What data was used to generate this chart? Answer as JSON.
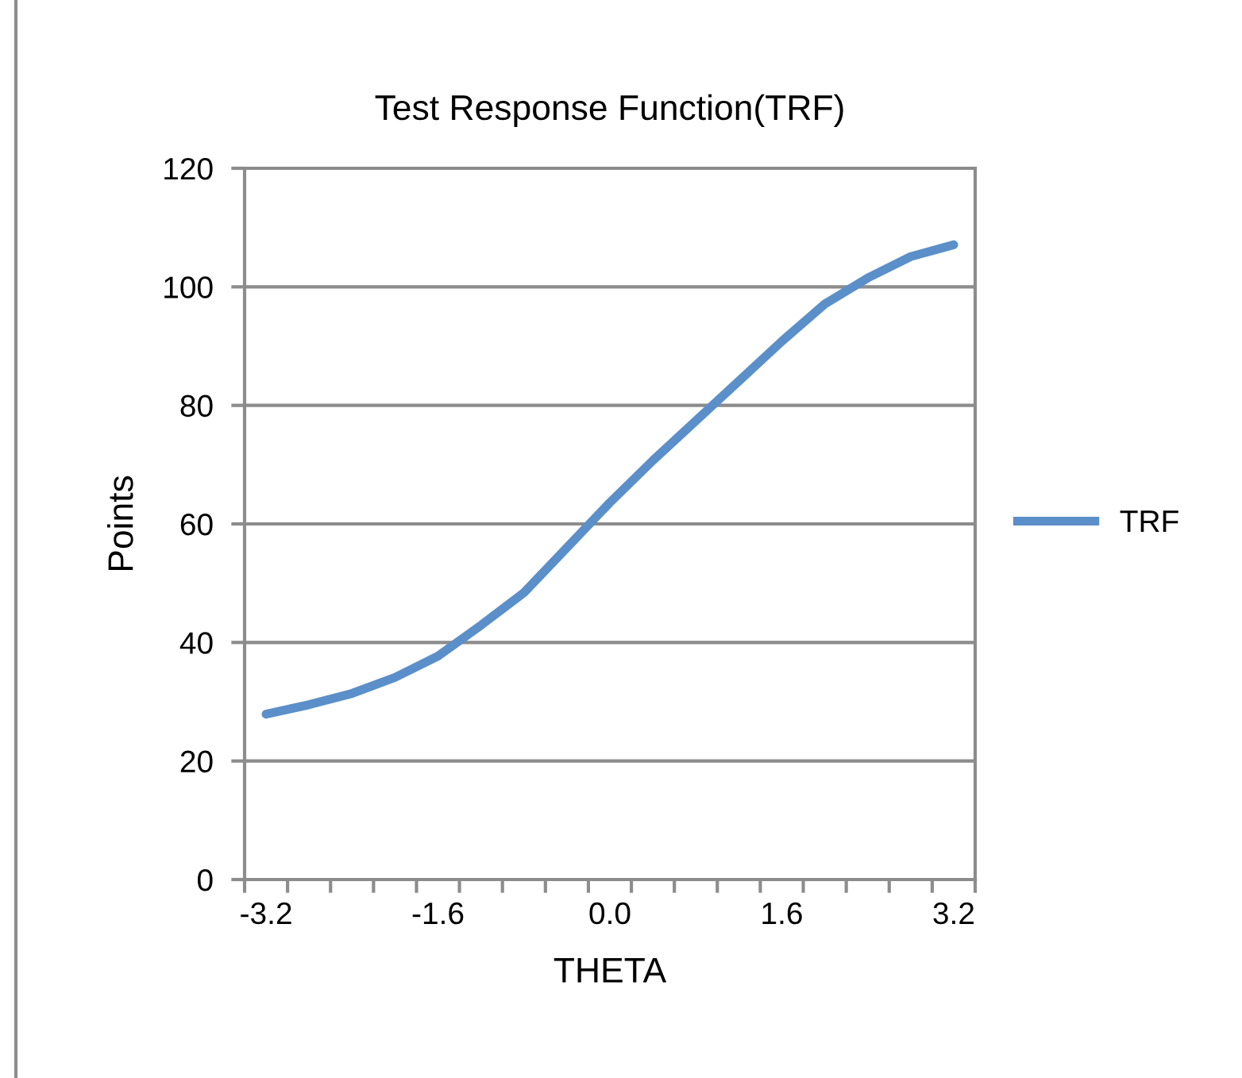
{
  "chart_data": {
    "type": "line",
    "title": "Test Response Function(TRF)",
    "xlabel": "THETA",
    "ylabel": "Points",
    "categories": [
      "-3.2",
      null,
      null,
      null,
      "-1.6",
      null,
      null,
      null,
      "0.0",
      null,
      null,
      null,
      "1.6",
      null,
      null,
      null,
      "3.2"
    ],
    "series": [
      {
        "name": "TRF",
        "color": "#5b8fc9",
        "values": [
          27.9,
          29.5,
          31.4,
          34.1,
          37.7,
          42.9,
          48.4,
          56.0,
          63.6,
          70.7,
          77.4,
          84.1,
          90.8,
          97.1,
          101.5,
          105.1,
          107.1
        ]
      }
    ],
    "ylim": [
      0,
      120
    ],
    "yticks": [
      0,
      20,
      40,
      60,
      80,
      100,
      120
    ],
    "grid": "y",
    "legend": "right",
    "marker": "none",
    "line_style": "solid"
  }
}
